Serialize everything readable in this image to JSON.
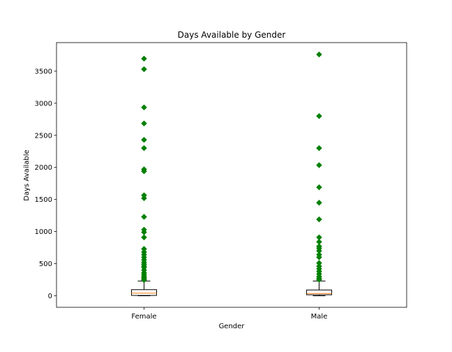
{
  "chart_data": {
    "type": "box",
    "title": "Days Available by Gender",
    "xlabel": "Gender",
    "ylabel": "Days Available",
    "categories": [
      "Female",
      "Male"
    ],
    "ylim": [
      -180,
      3945
    ],
    "yticks": [
      0,
      500,
      1000,
      1500,
      2000,
      2500,
      3000,
      3500
    ],
    "grid": false,
    "flier_color": "#008000",
    "median_color": "#ff7f0e",
    "boxes": [
      {
        "name": "Female",
        "whislo": 0,
        "q1": 5,
        "med": 40,
        "q3": 95,
        "whishi": 230,
        "fliers": [
          3695,
          3530,
          2935,
          2685,
          2430,
          2300,
          1970,
          1940,
          1565,
          1520,
          1230,
          1030,
          990,
          910,
          730,
          680,
          640,
          600,
          560,
          520,
          490,
          460,
          440,
          400,
          360,
          330,
          300,
          280,
          260,
          245
        ]
      },
      {
        "name": "Male",
        "whislo": 0,
        "q1": 15,
        "med": 35,
        "q3": 90,
        "whishi": 230,
        "fliers": [
          3760,
          2800,
          2300,
          2035,
          1690,
          1450,
          1190,
          910,
          840,
          770,
          740,
          700,
          640,
          600,
          510,
          460,
          420,
          380,
          340,
          300,
          270,
          250
        ]
      }
    ]
  }
}
